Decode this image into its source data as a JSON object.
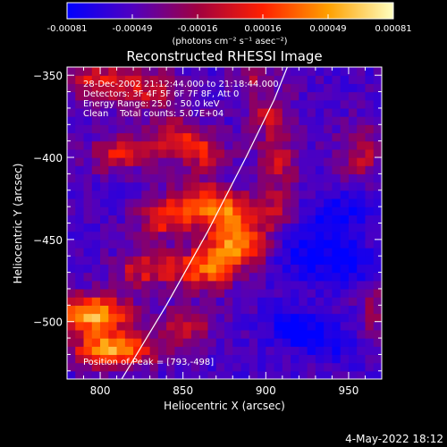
{
  "chart_data": {
    "type": "heatmap",
    "title": "Reconstructed RHESSI Image",
    "xlabel": "Heliocentric X (arcsec)",
    "ylabel": "Heliocentric Y (arcsec)",
    "xlim": [
      780,
      970
    ],
    "ylim": [
      -535,
      -345
    ],
    "x_ticks": [
      800,
      850,
      900,
      950
    ],
    "y_ticks": [
      -350,
      -400,
      -450,
      -500
    ],
    "colorbar": {
      "label": "(photons cm⁻² s⁻¹ asec⁻²)",
      "range": [
        -0.00081,
        0.00081
      ],
      "ticks": [
        "-0.00081",
        "-0.00049",
        "-0.00016",
        "0.00016",
        "0.00049",
        "0.00081"
      ],
      "colors": [
        "#0000ff",
        "#5000c0",
        "#a00040",
        "#ff2000",
        "#ffa000",
        "#ffffc0"
      ]
    },
    "info_lines": [
      "28-Dec-2002 21:12:44.000 to 21:18:44.000",
      "Detectors: 3F 4F 5F 6F 7F 8F, Att 0",
      "Energy Range: 25.0 - 50.0 keV",
      "Clean    Total counts: 5.07E+04"
    ],
    "peak_text": "Position of Peak = [793,-498]",
    "peak": [
      793,
      -498
    ],
    "limb_curve": [
      [
        813,
        -535
      ],
      [
        840,
        -490
      ],
      [
        865,
        -445
      ],
      [
        888,
        -400
      ],
      [
        905,
        -365
      ],
      [
        913,
        -345
      ]
    ],
    "blobs": [
      [
        793,
        -498,
        22,
        12,
        1.0
      ],
      [
        800,
        -520,
        18,
        10,
        0.9
      ],
      [
        882,
        -455,
        18,
        14,
        0.85
      ],
      [
        862,
        -470,
        16,
        14,
        0.7
      ],
      [
        875,
        -435,
        16,
        12,
        0.65
      ],
      [
        855,
        -430,
        18,
        14,
        0.55
      ],
      [
        835,
        -440,
        16,
        12,
        0.5
      ],
      [
        822,
        -470,
        14,
        12,
        0.5
      ],
      [
        808,
        -400,
        18,
        12,
        0.5
      ],
      [
        842,
        -390,
        18,
        14,
        0.5
      ],
      [
        862,
        -400,
        14,
        12,
        0.45
      ],
      [
        848,
        -505,
        18,
        12,
        0.45
      ],
      [
        822,
        -520,
        16,
        10,
        0.4
      ],
      [
        905,
        -405,
        14,
        18,
        0.45
      ],
      [
        900,
        -375,
        14,
        14,
        0.4
      ],
      [
        903,
        -435,
        12,
        12,
        0.4
      ],
      [
        955,
        -400,
        14,
        18,
        0.4
      ],
      [
        963,
        -495,
        10,
        22,
        0.3
      ],
      [
        795,
        -355,
        22,
        12,
        0.5
      ],
      [
        828,
        -360,
        20,
        12,
        0.45
      ],
      [
        890,
        -352,
        12,
        10,
        0.35
      ],
      [
        840,
        -470,
        12,
        10,
        0.35
      ],
      [
        935,
        -515,
        20,
        10,
        -0.3
      ],
      [
        925,
        -460,
        24,
        18,
        -0.35
      ],
      [
        915,
        -505,
        14,
        10,
        -0.45
      ],
      [
        945,
        -435,
        18,
        14,
        -0.3
      ],
      [
        950,
        -470,
        14,
        12,
        -0.25
      ]
    ]
  },
  "footer": {
    "date": "4-May-2022 18:12"
  }
}
